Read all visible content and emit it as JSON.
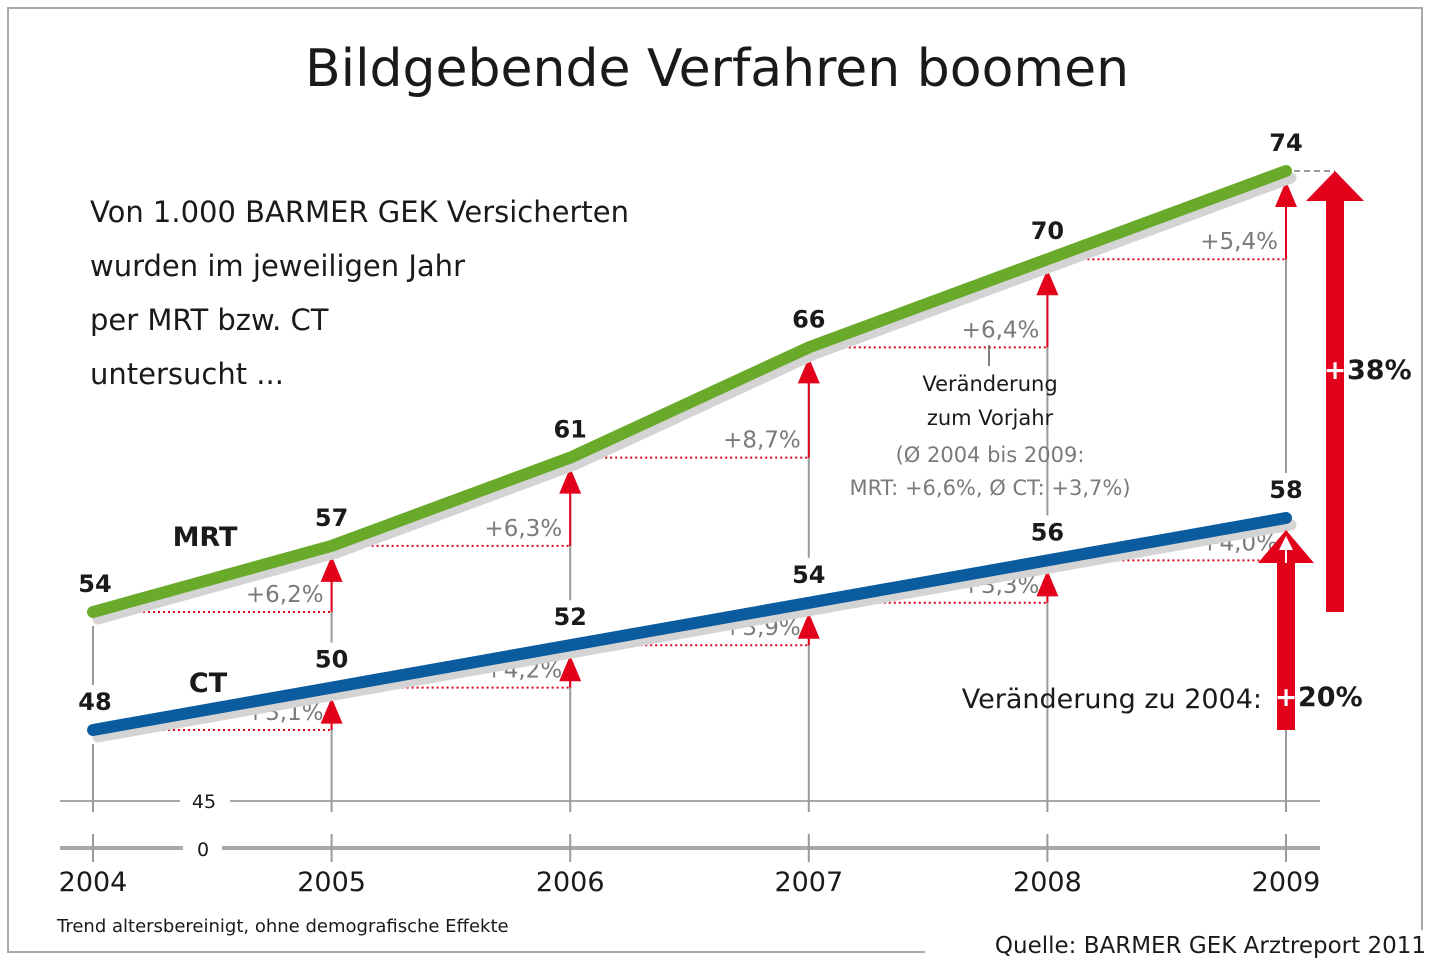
{
  "chart_data": {
    "type": "line",
    "title": "Bildgebende Verfahren boomen",
    "subtitle_lines": [
      "Von 1.000 BARMER GEK Versicherten",
      "wurden im jeweiligen Jahr",
      "per MRT bzw. CT",
      "untersucht ..."
    ],
    "x": [
      "2004",
      "2005",
      "2006",
      "2007",
      "2008",
      "2009"
    ],
    "series": [
      {
        "name": "MRT",
        "color": "#6aaa2a",
        "values": [
          54,
          57,
          61,
          66,
          70,
          74
        ],
        "changes": [
          "+6,2%",
          "+6,3%",
          "+8,7%",
          "+6,4%",
          "+5,4%"
        ],
        "change_since_start": "+38%"
      },
      {
        "name": "CT",
        "color": "#0b5c9e",
        "values": [
          48,
          50,
          52,
          54,
          56,
          58
        ],
        "changes": [
          "+3,1%",
          "+4,2%",
          "+3,9%",
          "+3,3%",
          "+4,0%"
        ],
        "change_since_start": "+20%"
      }
    ],
    "y_ticks": [
      "0",
      "45"
    ],
    "ylim": [
      45,
      75
    ],
    "axis_break": true,
    "grid": false,
    "legend": "inline-labels",
    "annotation": {
      "line1": "Veränderung",
      "line2": "zum Vorjahr",
      "line3": "(Ø 2004 bis 2009:",
      "line4": "MRT: +6,6%, Ø CT: +3,7%)"
    },
    "change_label": "Veränderung zu 2004:",
    "footnote": "Trend altersbereinigt, ohne demografische Effekte",
    "source": "Quelle: BARMER GEK Arztreport 2011",
    "accent_color": "#e2001a",
    "gray_color": "#9a9a9a"
  }
}
